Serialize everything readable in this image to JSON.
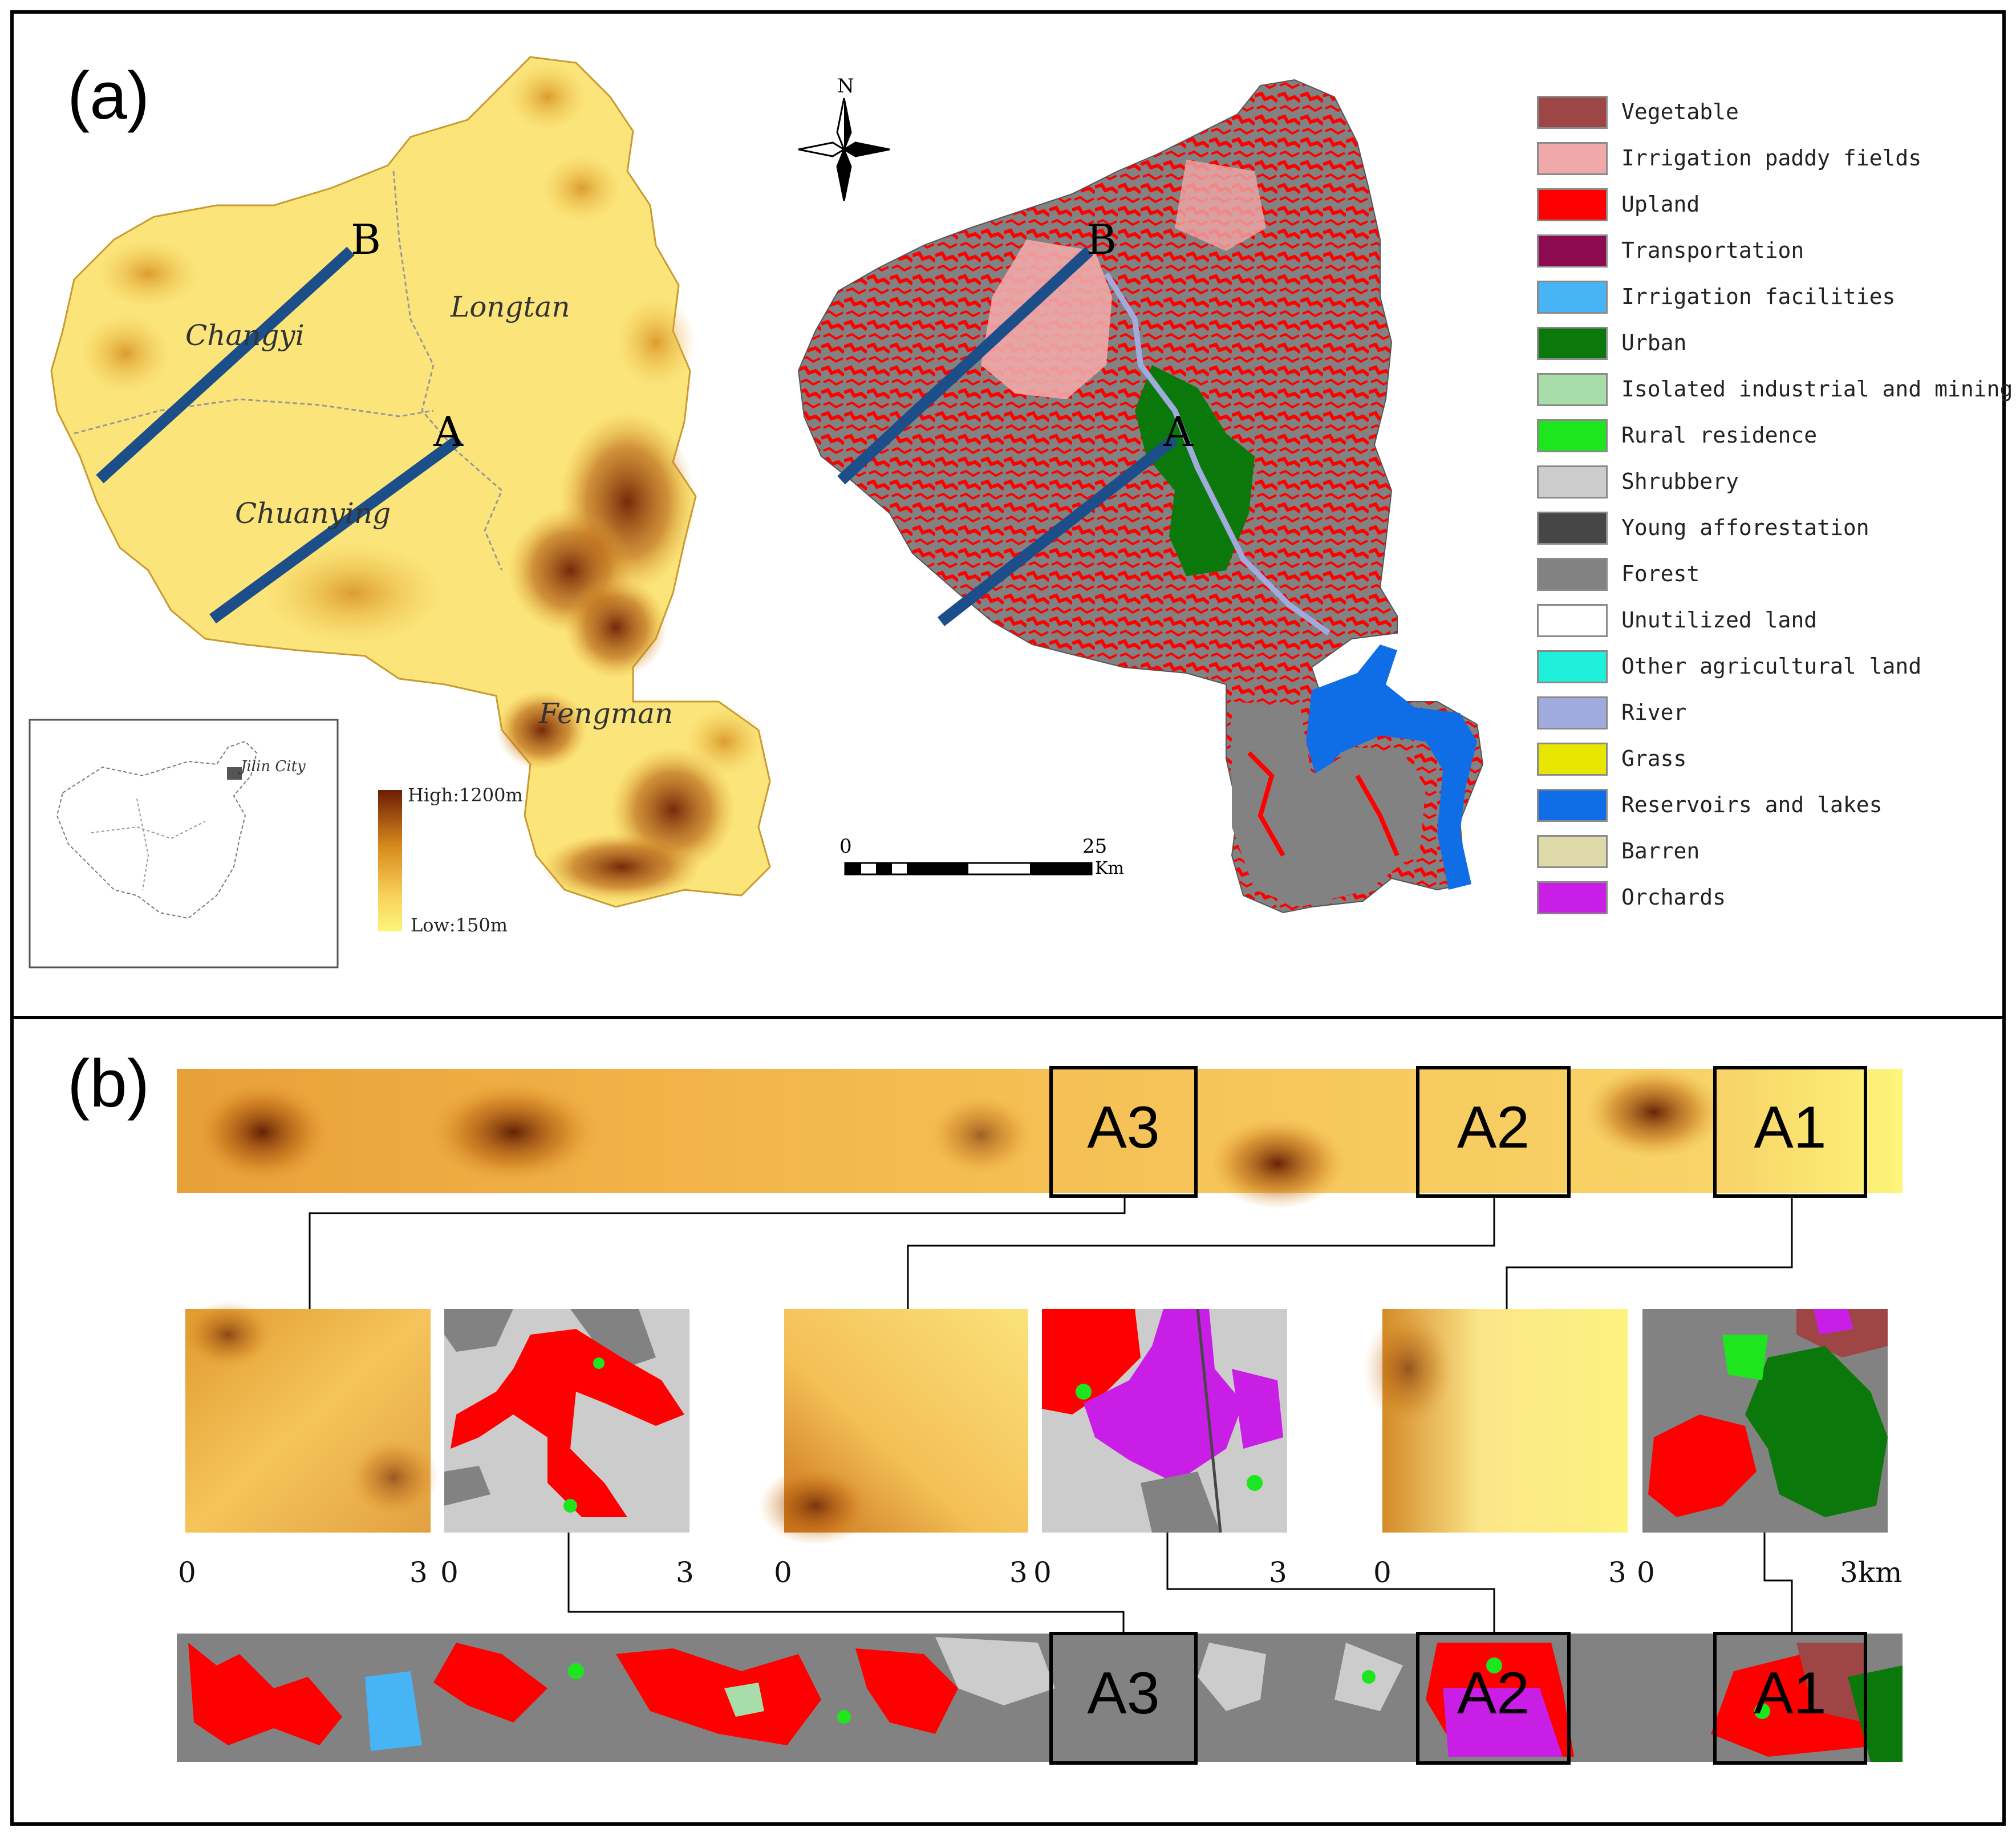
{
  "panels": {
    "a": {
      "label": "(a)"
    },
    "b": {
      "label": "(b)"
    }
  },
  "elevation_map": {
    "regions": [
      "Changyi",
      "Longtan",
      "Chuanying",
      "Fengman"
    ],
    "transects": [
      "A",
      "B"
    ],
    "elevation_legend": {
      "high": "High:1200m",
      "low": "Low:150m"
    },
    "inset": {
      "city": "Jilin City"
    }
  },
  "landuse_map": {
    "north": "N",
    "scale": {
      "start": "0",
      "end": "25",
      "unit": "Km"
    },
    "transects": [
      "A",
      "B"
    ]
  },
  "legend": [
    {
      "label": "Vegetable",
      "color": "#9e4545"
    },
    {
      "label": "Irrigation paddy fields",
      "color": "#f0a8a8"
    },
    {
      "label": "Upland",
      "color": "#ff0000"
    },
    {
      "label": "Transportation",
      "color": "#8b0a50"
    },
    {
      "label": "Irrigation facilities",
      "color": "#46b4f5"
    },
    {
      "label": "Urban",
      "color": "#0a780a"
    },
    {
      "label": "Isolated industrial and mining",
      "color": "#a8dca8"
    },
    {
      "label": "Rural residence",
      "color": "#1ee61e"
    },
    {
      "label": "Shrubbery",
      "color": "#cccccc"
    },
    {
      "label": "Young afforestation",
      "color": "#464646"
    },
    {
      "label": "Forest",
      "color": "#828282"
    },
    {
      "label": "Unutilized land",
      "color": "#ffffff"
    },
    {
      "label": "Other agricultural land",
      "color": "#1ef0dc"
    },
    {
      "label": "River",
      "color": "#a0aadc"
    },
    {
      "label": "Grass",
      "color": "#e6e600"
    },
    {
      "label": "Reservoirs and lakes",
      "color": "#0f6ee6"
    },
    {
      "label": "Barren",
      "color": "#ddd9a8"
    },
    {
      "label": "Orchards",
      "color": "#c81ee6"
    }
  ],
  "sample_boxes": [
    "A3",
    "A2",
    "A1"
  ],
  "subset_scales": [
    {
      "start": "0",
      "end": "3"
    },
    {
      "start": "0",
      "end": "3"
    },
    {
      "start": "0",
      "end": "3"
    },
    {
      "start": "0",
      "end": "3"
    },
    {
      "start": "0",
      "end": "3"
    },
    {
      "start": "0",
      "end": "3km"
    }
  ]
}
